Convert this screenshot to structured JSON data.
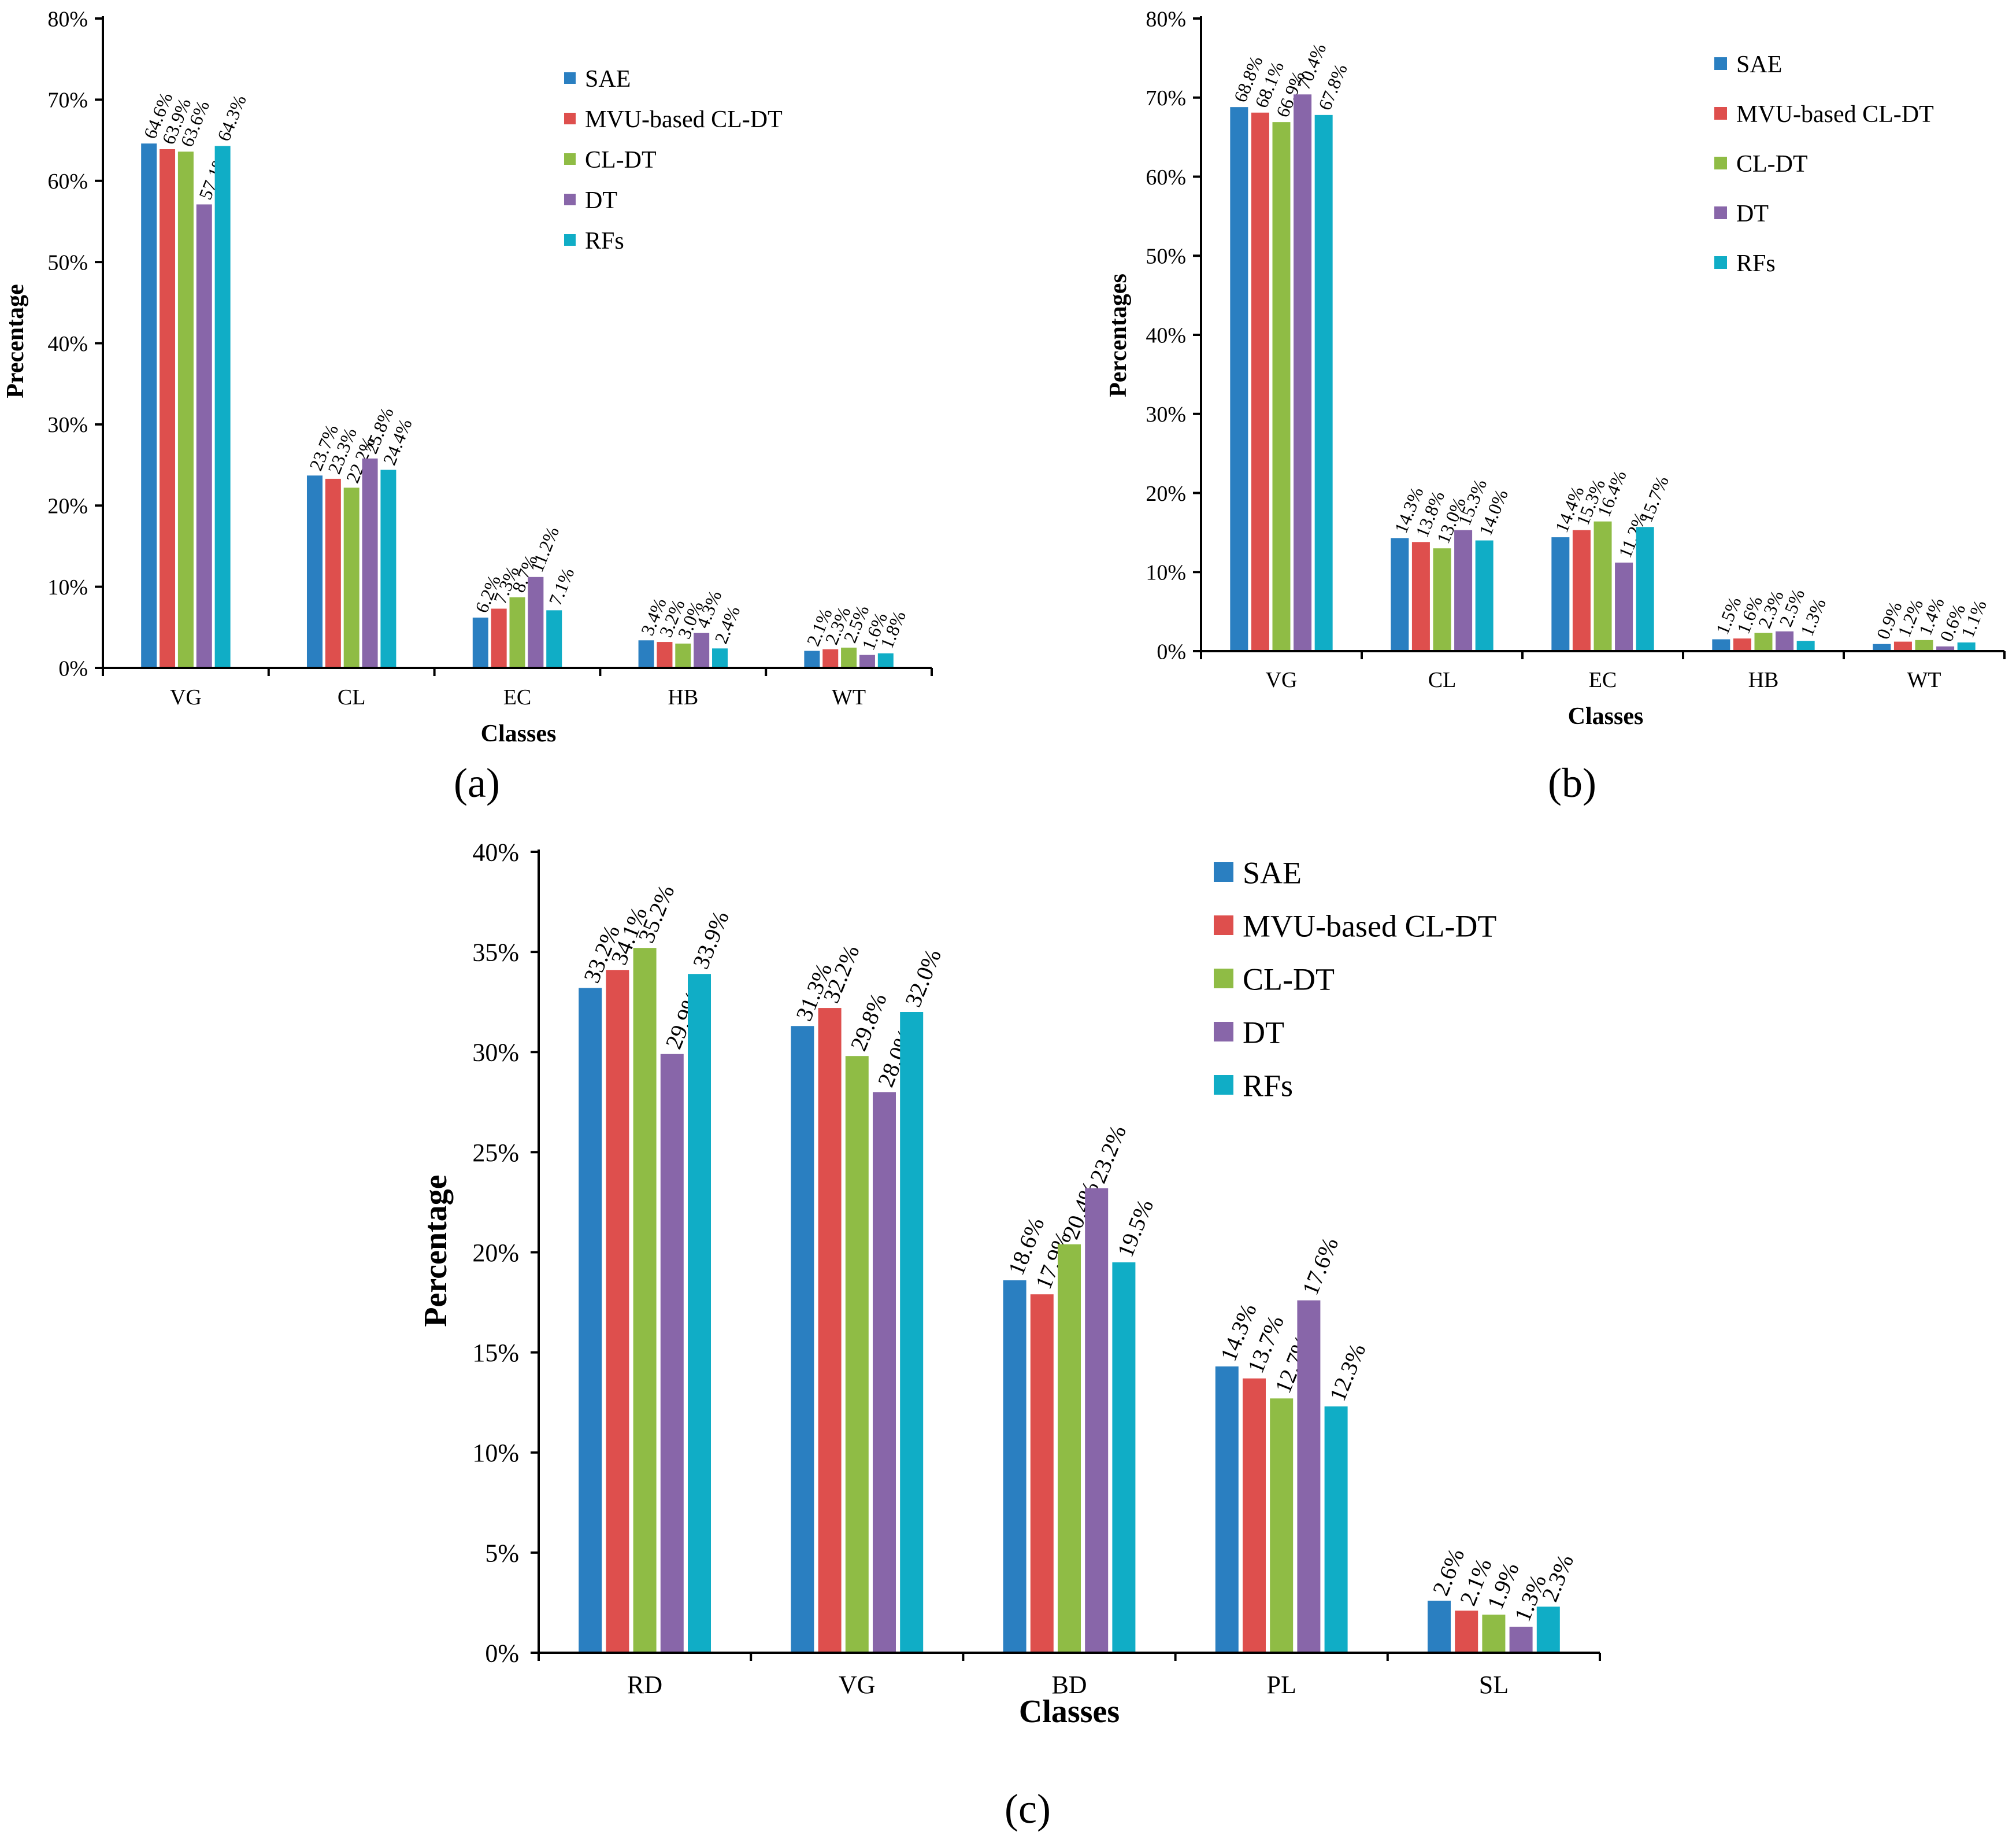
{
  "chart_data": [
    {
      "type": "bar",
      "panel_label": "(a)",
      "categories": [
        "VG",
        "CL",
        "EC",
        "HB",
        "WT"
      ],
      "series": [
        {
          "name": "SAE",
          "values": [
            64.6,
            23.7,
            6.2,
            3.4,
            2.1
          ],
          "labels": [
            "64.6%",
            "23.7%",
            "6.2%",
            "3.4%",
            "2.1%"
          ]
        },
        {
          "name": "MVU-based CL-DT",
          "values": [
            63.9,
            23.3,
            7.3,
            3.2,
            2.3
          ],
          "labels": [
            "63.9%",
            "23.3%",
            "7.3%",
            "3.2%",
            "2.3%"
          ]
        },
        {
          "name": "CL-DT",
          "values": [
            63.6,
            22.2,
            8.7,
            3.0,
            2.5
          ],
          "labels": [
            "63.6%",
            "22.2%",
            "8.7%",
            "3.0%",
            "2.5%"
          ]
        },
        {
          "name": "DT",
          "values": [
            57.1,
            25.8,
            11.2,
            4.3,
            1.6
          ],
          "labels": [
            "57.1%",
            "25.8%",
            "11.2%",
            "4.3%",
            "1.6%"
          ]
        },
        {
          "name": "RFs",
          "values": [
            64.3,
            24.4,
            7.1,
            2.4,
            1.8
          ],
          "labels": [
            "64.3%",
            "24.4%",
            "7.1%",
            "2.4%",
            "1.8%"
          ]
        }
      ],
      "xlabel": "Classes",
      "ylabel": "Precentage",
      "ylim": [
        0,
        80
      ],
      "ytick_labels": [
        "0%",
        "10%",
        "20%",
        "30%",
        "40%",
        "50%",
        "60%",
        "70%",
        "80%"
      ],
      "legend": "top-right"
    },
    {
      "type": "bar",
      "panel_label": "(b)",
      "categories": [
        "VG",
        "CL",
        "EC",
        "HB",
        "WT"
      ],
      "series": [
        {
          "name": "SAE",
          "values": [
            68.8,
            14.3,
            14.4,
            1.5,
            0.9
          ],
          "labels": [
            "68.8%",
            "14.3%",
            "14.4%",
            "1.5%",
            "0.9%"
          ]
        },
        {
          "name": "MVU-based CL-DT",
          "values": [
            68.1,
            13.8,
            15.3,
            1.6,
            1.2
          ],
          "labels": [
            "68.1%",
            "13.8%",
            "15.3%",
            "1.6%",
            "1.2%"
          ]
        },
        {
          "name": "CL-DT",
          "values": [
            66.9,
            13.0,
            16.4,
            2.3,
            1.4
          ],
          "labels": [
            "66.9%",
            "13.0%",
            "16.4%",
            "2.3%",
            "1.4%"
          ]
        },
        {
          "name": "DT",
          "values": [
            70.4,
            15.3,
            11.2,
            2.5,
            0.6
          ],
          "labels": [
            "70.4%",
            "15.3%",
            "11.2%",
            "2.5%",
            "0.6%"
          ]
        },
        {
          "name": "RFs",
          "values": [
            67.8,
            14.0,
            15.7,
            1.3,
            1.1
          ],
          "labels": [
            "67.8%",
            "14.0%",
            "15.7%",
            "1.3%",
            "1.1%"
          ]
        }
      ],
      "xlabel": "Classes",
      "ylabel": "Percentages",
      "ylim": [
        0,
        80
      ],
      "ytick_labels": [
        "0%",
        "10%",
        "20%",
        "30%",
        "40%",
        "50%",
        "60%",
        "70%",
        "80%"
      ],
      "legend": "top-right"
    },
    {
      "type": "bar",
      "panel_label": "(c)",
      "categories": [
        "RD",
        "VG",
        "BD",
        "PL",
        "SL"
      ],
      "series": [
        {
          "name": "SAE",
          "values": [
            33.2,
            31.3,
            18.6,
            14.3,
            2.6
          ],
          "labels": [
            "33.2%",
            "31.3%",
            "18.6%",
            "14.3%",
            "2.6%"
          ]
        },
        {
          "name": "MVU-based CL-DT",
          "values": [
            34.1,
            32.2,
            17.9,
            13.7,
            2.1
          ],
          "labels": [
            "34.1%",
            "32.2%",
            "17.9%",
            "13.7%",
            "2.1%"
          ]
        },
        {
          "name": "CL-DT",
          "values": [
            35.2,
            29.8,
            20.4,
            12.7,
            1.9
          ],
          "labels": [
            "35.2%",
            "29.8%",
            "20.4%",
            "12.7%",
            "1.9%"
          ]
        },
        {
          "name": "DT",
          "values": [
            29.9,
            28.0,
            23.2,
            17.6,
            1.3
          ],
          "labels": [
            "29.9%",
            "28.0%",
            "23.2%",
            "17.6%",
            "1.3%"
          ]
        },
        {
          "name": "RFs",
          "values": [
            33.9,
            32.0,
            19.5,
            12.3,
            2.3
          ],
          "labels": [
            "33.9%",
            "32.0%",
            "19.5%",
            "12.3%",
            "2.3%"
          ]
        }
      ],
      "xlabel": "Classes",
      "ylabel": "Percentage",
      "ylim": [
        0,
        40
      ],
      "ytick_labels": [
        "0%",
        "5%",
        "10%",
        "15%",
        "20%",
        "25%",
        "30%",
        "35%",
        "40%"
      ],
      "legend": "top-right"
    }
  ],
  "colors": {
    "SAE": "#2a7fc1",
    "MVU-based CL-DT": "#de4f4d",
    "CL-DT": "#8fbc45",
    "DT": "#8866a9",
    "RFs": "#10adc6"
  }
}
